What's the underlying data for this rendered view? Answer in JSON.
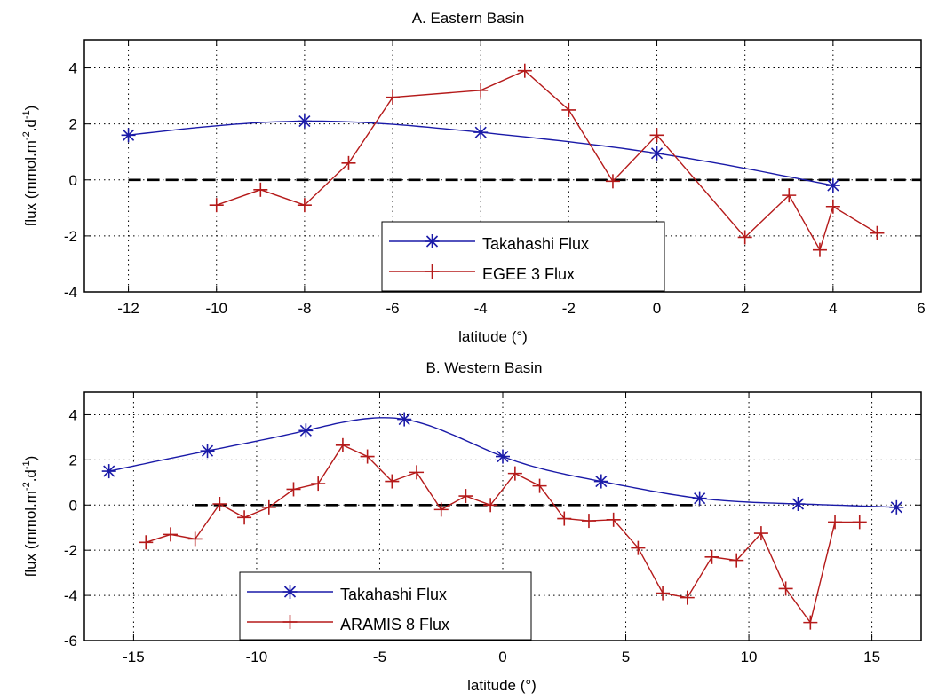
{
  "colors": {
    "takahashi": "#1a1aa8",
    "cruise": "#b51a1a",
    "zero_line": "#000000",
    "grid": "#000000"
  },
  "chart_data": [
    {
      "type": "line",
      "title": "A. Eastern Basin",
      "xlabel": "latitude (°)",
      "ylabel": "flux (mmol.m",
      "ylabel_sup1": "-2",
      "ylabel_mid": ".d",
      "ylabel_sup2": "-1",
      "ylabel_end": ")",
      "xlim": [
        -13,
        6
      ],
      "ylim": [
        -4,
        5
      ],
      "xticks": [
        -12,
        -10,
        -8,
        -6,
        -4,
        -2,
        0,
        2,
        4,
        6
      ],
      "yticks": [
        -4,
        -2,
        0,
        2,
        4
      ],
      "grid": true,
      "zero_line": {
        "x": [
          -12,
          6
        ],
        "y": 0
      },
      "legend_position": "bottom-center",
      "series": [
        {
          "name": "Takahashi Flux",
          "marker": "asterisk",
          "smooth": true,
          "x": [
            -12,
            -8,
            -4,
            0,
            4
          ],
          "y": [
            1.6,
            2.1,
            1.7,
            0.95,
            -0.2
          ]
        },
        {
          "name": "EGEE 3 Flux",
          "marker": "plus",
          "smooth": false,
          "x": [
            -10,
            -9,
            -8,
            -7,
            -6,
            -4,
            -3,
            -2,
            -1,
            0,
            2,
            3,
            3.7,
            4,
            5
          ],
          "y": [
            -0.9,
            -0.35,
            -0.9,
            0.6,
            2.95,
            3.2,
            3.9,
            2.5,
            -0.05,
            1.6,
            -2.05,
            -0.55,
            -2.5,
            -0.95,
            -1.9
          ]
        }
      ]
    },
    {
      "type": "line",
      "title": "B. Western Basin",
      "xlabel": "latitude (°)",
      "ylabel": "flux (mmol.m",
      "ylabel_sup1": "-2",
      "ylabel_mid": ".d",
      "ylabel_sup2": "-1",
      "ylabel_end": ")",
      "xlim": [
        -17,
        17
      ],
      "ylim": [
        -6,
        5
      ],
      "xticks": [
        -15,
        -10,
        -5,
        0,
        5,
        10,
        15
      ],
      "yticks": [
        -6,
        -4,
        -2,
        0,
        2,
        4
      ],
      "grid": true,
      "zero_line": {
        "x": [
          -12.5,
          8
        ],
        "y": 0
      },
      "legend_position": "bottom-left",
      "series": [
        {
          "name": "Takahashi Flux",
          "marker": "asterisk",
          "smooth": true,
          "x": [
            -16,
            -12,
            -8,
            -4,
            0,
            4,
            8,
            12,
            16
          ],
          "y": [
            1.5,
            2.4,
            3.3,
            3.8,
            2.15,
            1.05,
            0.3,
            0.05,
            -0.1
          ]
        },
        {
          "name": "ARAMIS 8 Flux",
          "marker": "plus",
          "smooth": false,
          "x": [
            -14.5,
            -13.5,
            -12.5,
            -11.5,
            -10.5,
            -9.5,
            -8.5,
            -7.5,
            -6.5,
            -5.5,
            -4.5,
            -3.5,
            -2.5,
            -1.5,
            -0.5,
            0.5,
            1.5,
            2.5,
            3.5,
            4.5,
            5.5,
            6.5,
            7.5,
            8.5,
            9.5,
            10.5,
            11.5,
            12.5,
            13.5,
            14.5
          ],
          "y": [
            -1.65,
            -1.3,
            -1.5,
            0.05,
            -0.55,
            -0.1,
            0.7,
            0.95,
            2.65,
            2.15,
            1.05,
            1.45,
            -0.2,
            0.4,
            0.0,
            1.4,
            0.85,
            -0.6,
            -0.7,
            -0.65,
            -1.9,
            -3.9,
            -4.1,
            -2.3,
            -2.45,
            -1.25,
            -3.7,
            -5.2,
            -0.75,
            -0.75
          ]
        }
      ]
    }
  ]
}
